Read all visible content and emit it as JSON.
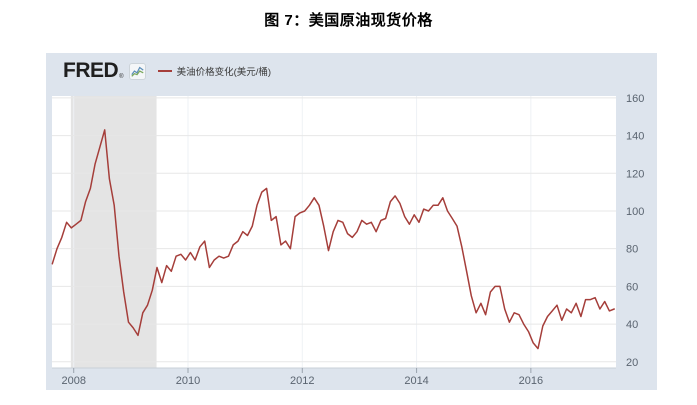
{
  "page": {
    "title": "图 7：美国原油现货价格"
  },
  "widget": {
    "brand": "FRED",
    "brand_registered": "®",
    "legend": {
      "label": "美油价格变化(美元/桶)",
      "color": "#a53e3a"
    }
  },
  "colors": {
    "page_background": "#ffffff",
    "widget_background": "#dde4ed",
    "plot_background": "#ffffff",
    "h_gridline": "#e7e7e7",
    "v_gridline": "#eef2f5",
    "recession_band": "#e4e4e4",
    "axis_text": "#5a6470",
    "axis_border": "#c9d0d8",
    "tick_mark": "#9aa3ad",
    "line": "#a53e3a"
  },
  "chart_data": {
    "type": "line",
    "title": "美国原油现货价格 (WTI spot price)",
    "series_name": "美油价格变化(美元/桶)",
    "frequency": "monthly",
    "start": {
      "year": 2007,
      "month": 8
    },
    "end": {
      "year": 2017,
      "month": 6
    },
    "values": [
      72,
      80,
      86,
      94,
      91,
      93,
      95,
      105,
      112,
      125,
      134,
      143,
      117,
      103,
      76,
      57,
      41,
      38,
      34,
      46,
      50,
      58,
      70,
      62,
      71,
      68,
      76,
      77,
      74,
      78,
      74,
      81,
      84,
      70,
      74,
      76,
      75,
      76,
      82,
      84,
      89,
      87,
      92,
      103,
      110,
      112,
      95,
      97,
      82,
      84,
      80,
      97,
      99,
      100,
      103,
      107,
      103,
      92,
      79,
      89,
      95,
      94,
      88,
      86,
      89,
      95,
      93,
      94,
      89,
      95,
      96,
      105,
      108,
      104,
      97,
      93,
      98,
      94,
      101,
      100,
      103,
      103,
      107,
      100,
      96,
      92,
      81,
      68,
      55,
      46,
      51,
      45,
      57,
      60,
      60,
      48,
      41,
      46,
      45,
      40,
      36,
      30,
      27,
      39,
      44,
      47,
      50,
      42,
      48,
      46,
      51,
      44,
      53,
      53,
      54,
      48,
      52,
      47,
      48
    ],
    "x_ticks": [
      2008,
      2010,
      2012,
      2014,
      2016
    ],
    "y_ticks": [
      20,
      40,
      60,
      80,
      100,
      120,
      140,
      160
    ],
    "xlim": [
      2007.62,
      2017.49
    ],
    "ylim": [
      16.7,
      161
    ],
    "recession_band": {
      "from": 2007.95,
      "to": 2009.45
    },
    "line_color": "#a53e3a",
    "grid": true,
    "legend_position": "top-left",
    "y_axis_side": "right"
  }
}
